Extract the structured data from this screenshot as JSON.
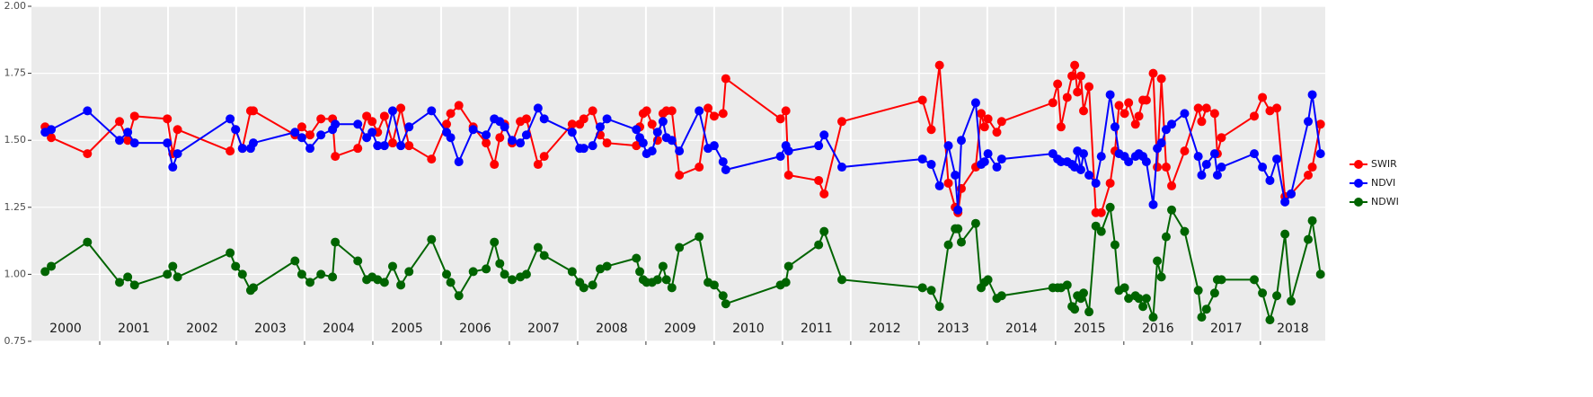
{
  "chart_data": {
    "type": "line",
    "x": [
      2000.2,
      2000.29,
      2000.82,
      2001.29,
      2001.41,
      2001.51,
      2001.99,
      2002.07,
      2002.14,
      2002.91,
      2002.99,
      2003.09,
      2003.21,
      2003.25,
      2003.86,
      2003.96,
      2004.08,
      2004.24,
      2004.41,
      2004.45,
      2004.78,
      2004.91,
      2004.99,
      2005.07,
      2005.17,
      2005.29,
      2005.41,
      2005.53,
      2005.86,
      2006.08,
      2006.14,
      2006.26,
      2006.47,
      2006.66,
      2006.78,
      2006.86,
      2006.93,
      2007.04,
      2007.16,
      2007.25,
      2007.42,
      2007.51,
      2007.92,
      2008.03,
      2008.09,
      2008.22,
      2008.33,
      2008.43,
      2008.86,
      2008.91,
      2008.96,
      2009.01,
      2009.09,
      2009.17,
      2009.25,
      2009.3,
      2009.38,
      2009.49,
      2009.78,
      2009.91,
      2010.0,
      2010.13,
      2010.17,
      2010.97,
      2011.05,
      2011.09,
      2011.53,
      2011.61,
      2011.87,
      2013.05,
      2013.18,
      2013.3,
      2013.43,
      2013.53,
      2013.57,
      2013.62,
      2013.83,
      2013.91,
      2013.96,
      2014.01,
      2014.14,
      2014.21,
      2014.96,
      2015.03,
      2015.08,
      2015.17,
      2015.24,
      2015.28,
      2015.32,
      2015.37,
      2015.41,
      2015.49,
      2015.59,
      2015.67,
      2015.8,
      2015.87,
      2015.93,
      2016.01,
      2016.07,
      2016.17,
      2016.22,
      2016.28,
      2016.33,
      2016.43,
      2016.49,
      2016.55,
      2016.62,
      2016.7,
      2016.89,
      2017.09,
      2017.14,
      2017.21,
      2017.33,
      2017.37,
      2017.43,
      2017.91,
      2018.03,
      2018.14,
      2018.24,
      2018.36,
      2018.45,
      2018.7,
      2018.76,
      2018.88
    ],
    "series": [
      {
        "name": "SWIR",
        "color": "#ff0000",
        "values": [
          1.55,
          1.51,
          1.45,
          1.57,
          1.5,
          1.59,
          1.58,
          1.45,
          1.54,
          1.46,
          1.54,
          1.47,
          1.61,
          1.61,
          1.52,
          1.55,
          1.52,
          1.58,
          1.58,
          1.44,
          1.47,
          1.59,
          1.57,
          1.53,
          1.59,
          1.49,
          1.62,
          1.48,
          1.43,
          1.56,
          1.6,
          1.63,
          1.55,
          1.49,
          1.41,
          1.51,
          1.56,
          1.49,
          1.57,
          1.58,
          1.41,
          1.44,
          1.56,
          1.56,
          1.58,
          1.61,
          1.52,
          1.49,
          1.48,
          1.55,
          1.6,
          1.61,
          1.56,
          1.5,
          1.6,
          1.61,
          1.61,
          1.37,
          1.4,
          1.62,
          1.59,
          1.6,
          1.73,
          1.58,
          1.61,
          1.37,
          1.35,
          1.3,
          1.57,
          1.65,
          1.54,
          1.78,
          1.34,
          1.25,
          1.23,
          1.32,
          1.4,
          1.6,
          1.55,
          1.58,
          1.53,
          1.57,
          1.64,
          1.71,
          1.55,
          1.66,
          1.74,
          1.78,
          1.68,
          1.74,
          1.61,
          1.7,
          1.23,
          1.23,
          1.34,
          1.46,
          1.63,
          1.6,
          1.64,
          1.56,
          1.59,
          1.65,
          1.65,
          1.75,
          1.4,
          1.73,
          1.4,
          1.33,
          1.46,
          1.62,
          1.57,
          1.62,
          1.6,
          1.45,
          1.51,
          1.59,
          1.66,
          1.61,
          1.62,
          1.29,
          1.3,
          1.37,
          1.4,
          1.56
        ]
      },
      {
        "name": "NDVI",
        "color": "#0000ff",
        "values": [
          1.53,
          1.54,
          1.61,
          1.5,
          1.53,
          1.49,
          1.49,
          1.4,
          1.45,
          1.58,
          1.54,
          1.47,
          1.47,
          1.49,
          1.53,
          1.51,
          1.47,
          1.52,
          1.54,
          1.56,
          1.56,
          1.51,
          1.53,
          1.48,
          1.48,
          1.61,
          1.48,
          1.55,
          1.61,
          1.53,
          1.51,
          1.42,
          1.54,
          1.52,
          1.58,
          1.57,
          1.55,
          1.5,
          1.49,
          1.52,
          1.62,
          1.58,
          1.53,
          1.47,
          1.47,
          1.48,
          1.55,
          1.58,
          1.54,
          1.51,
          1.49,
          1.45,
          1.46,
          1.53,
          1.57,
          1.51,
          1.5,
          1.46,
          1.61,
          1.47,
          1.48,
          1.42,
          1.39,
          1.44,
          1.48,
          1.46,
          1.48,
          1.52,
          1.4,
          1.43,
          1.41,
          1.33,
          1.48,
          1.37,
          1.24,
          1.5,
          1.64,
          1.41,
          1.42,
          1.45,
          1.4,
          1.43,
          1.45,
          1.43,
          1.42,
          1.42,
          1.41,
          1.4,
          1.46,
          1.39,
          1.45,
          1.37,
          1.34,
          1.44,
          1.67,
          1.55,
          1.45,
          1.44,
          1.42,
          1.44,
          1.45,
          1.44,
          1.42,
          1.26,
          1.47,
          1.49,
          1.54,
          1.56,
          1.6,
          1.44,
          1.37,
          1.41,
          1.45,
          1.37,
          1.4,
          1.45,
          1.4,
          1.35,
          1.43,
          1.27,
          1.3,
          1.57,
          1.67,
          1.45
        ]
      },
      {
        "name": "NDWI",
        "color": "#006400",
        "values": [
          1.01,
          1.03,
          1.12,
          0.97,
          0.99,
          0.96,
          1.0,
          1.03,
          0.99,
          1.08,
          1.03,
          1.0,
          0.94,
          0.95,
          1.05,
          1.0,
          0.97,
          1.0,
          0.99,
          1.12,
          1.05,
          0.98,
          0.99,
          0.98,
          0.97,
          1.03,
          0.96,
          1.01,
          1.13,
          1.0,
          0.97,
          0.92,
          1.01,
          1.02,
          1.12,
          1.04,
          1.0,
          0.98,
          0.99,
          1.0,
          1.1,
          1.07,
          1.01,
          0.97,
          0.95,
          0.96,
          1.02,
          1.03,
          1.06,
          1.01,
          0.98,
          0.97,
          0.97,
          0.98,
          1.03,
          0.98,
          0.95,
          1.1,
          1.14,
          0.97,
          0.96,
          0.92,
          0.89,
          0.96,
          0.97,
          1.03,
          1.11,
          1.16,
          0.98,
          0.95,
          0.94,
          0.88,
          1.11,
          1.17,
          1.17,
          1.12,
          1.19,
          0.95,
          0.97,
          0.98,
          0.91,
          0.92,
          0.95,
          0.95,
          0.95,
          0.96,
          0.88,
          0.87,
          0.92,
          0.91,
          0.93,
          0.86,
          1.18,
          1.16,
          1.25,
          1.11,
          0.94,
          0.95,
          0.91,
          0.92,
          0.91,
          0.88,
          0.91,
          0.84,
          1.05,
          0.99,
          1.14,
          1.24,
          1.16,
          0.94,
          0.84,
          0.87,
          0.93,
          0.98,
          0.98,
          0.98,
          0.93,
          0.83,
          0.92,
          1.15,
          0.9,
          1.13,
          1.2,
          1.0
        ]
      }
    ],
    "xlim": [
      2000,
      2018.95
    ],
    "ylim": [
      0.75,
      2.0
    ],
    "yticks": [
      0.75,
      {
        "value": 1.0,
        "label": "1.00"
      },
      1.25,
      {
        "value": 1.5,
        "label": "1.50"
      },
      1.75,
      {
        "value": 2.0,
        "label": "2.00"
      }
    ],
    "xgrid": [
      2001,
      2002,
      2003,
      2004,
      2005,
      2006,
      2007,
      2008,
      2009,
      2010,
      2011,
      2012,
      2013,
      2014,
      2015,
      2016,
      2017,
      2018
    ],
    "year_labels": [
      "2000",
      "2001",
      "2002",
      "2003",
      "2004",
      "2005",
      "2006",
      "2007",
      "2008",
      "2009",
      "2010",
      "2011",
      "2012",
      "2013",
      "2014",
      "2015",
      "2016",
      "2017",
      "2018"
    ],
    "grid": true,
    "legend": "right"
  }
}
